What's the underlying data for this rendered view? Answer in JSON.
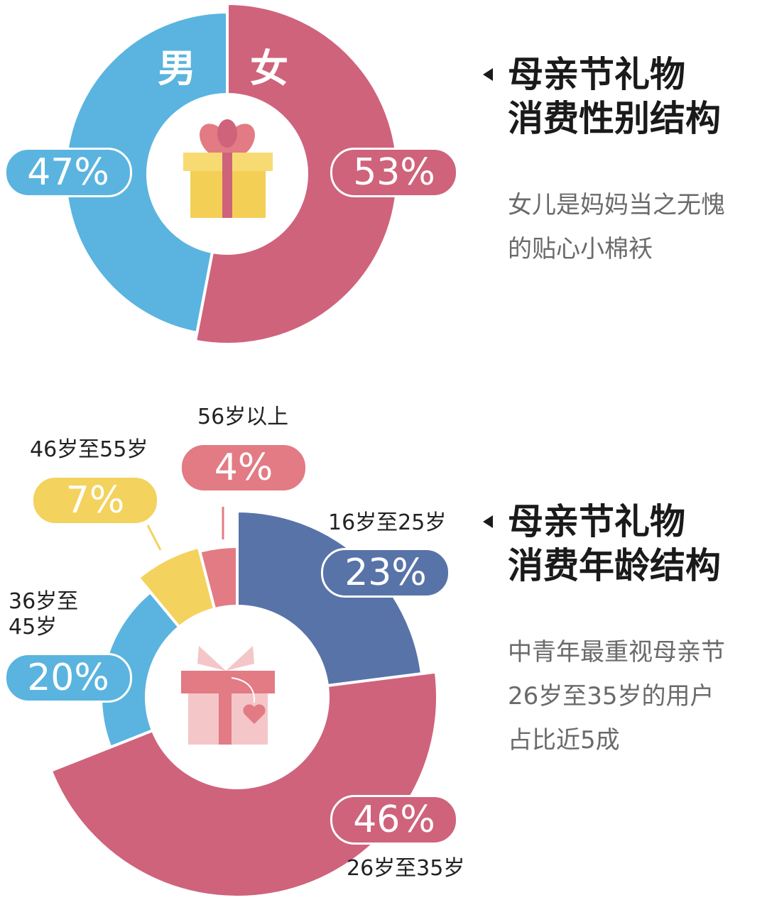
{
  "colors": {
    "male": "#5ab4df",
    "female": "#cf637b",
    "age_16_25": "#5873a8",
    "age_26_35": "#cf637b",
    "age_36_45": "#5ab4df",
    "age_46_55": "#f3d25e",
    "age_56_plus": "#e27b84"
  },
  "icons": [
    "gift-box-icon",
    "gift-heart-icon"
  ],
  "chart_data": [
    {
      "type": "pie",
      "style": "donut",
      "title": "母亲节礼物消费性别结构",
      "slices": [
        {
          "label": "男",
          "value": 47,
          "display": "47%",
          "color": "#5ab4df"
        },
        {
          "label": "女",
          "value": 53,
          "display": "53%",
          "color": "#cf637b"
        }
      ]
    },
    {
      "type": "pie",
      "style": "donut",
      "title": "母亲节礼物消费年龄结构",
      "slices": [
        {
          "label": "16岁至25岁",
          "value": 23,
          "display": "23%",
          "color": "#5873a8"
        },
        {
          "label": "26岁至35岁",
          "value": 46,
          "display": "46%",
          "color": "#cf637b"
        },
        {
          "label": "36岁至45岁",
          "value": 20,
          "display": "20%",
          "color": "#5ab4df"
        },
        {
          "label": "46岁至55岁",
          "value": 7,
          "display": "7%",
          "color": "#f3d25e"
        },
        {
          "label": "56岁以上",
          "value": 4,
          "display": "4%",
          "color": "#e27b84"
        }
      ]
    }
  ],
  "gender": {
    "heading_line1": "母亲节礼物",
    "heading_line2": "消费性别结构",
    "male_label": "男",
    "female_label": "女",
    "male_value": "47%",
    "female_value": "53%",
    "note_line1": "女儿是妈妈当之无愧",
    "note_line2": "的贴心小棉袄"
  },
  "age": {
    "heading_line1": "母亲节礼物",
    "heading_line2": "消费年龄结构",
    "label_16_25": "16岁至25岁",
    "label_26_35": "26岁至35岁",
    "label_36_45_line1": "36岁至",
    "label_36_45_line2": "45岁",
    "label_46_55": "46岁至55岁",
    "label_56_plus": "56岁以上",
    "value_16_25": "23%",
    "value_26_35": "46%",
    "value_36_45": "20%",
    "value_46_55": "7%",
    "value_56_plus": "4%",
    "note_line1": "中青年最重视母亲节",
    "note_line2": "26岁至35岁的用户",
    "note_line3": "占比近5成"
  }
}
